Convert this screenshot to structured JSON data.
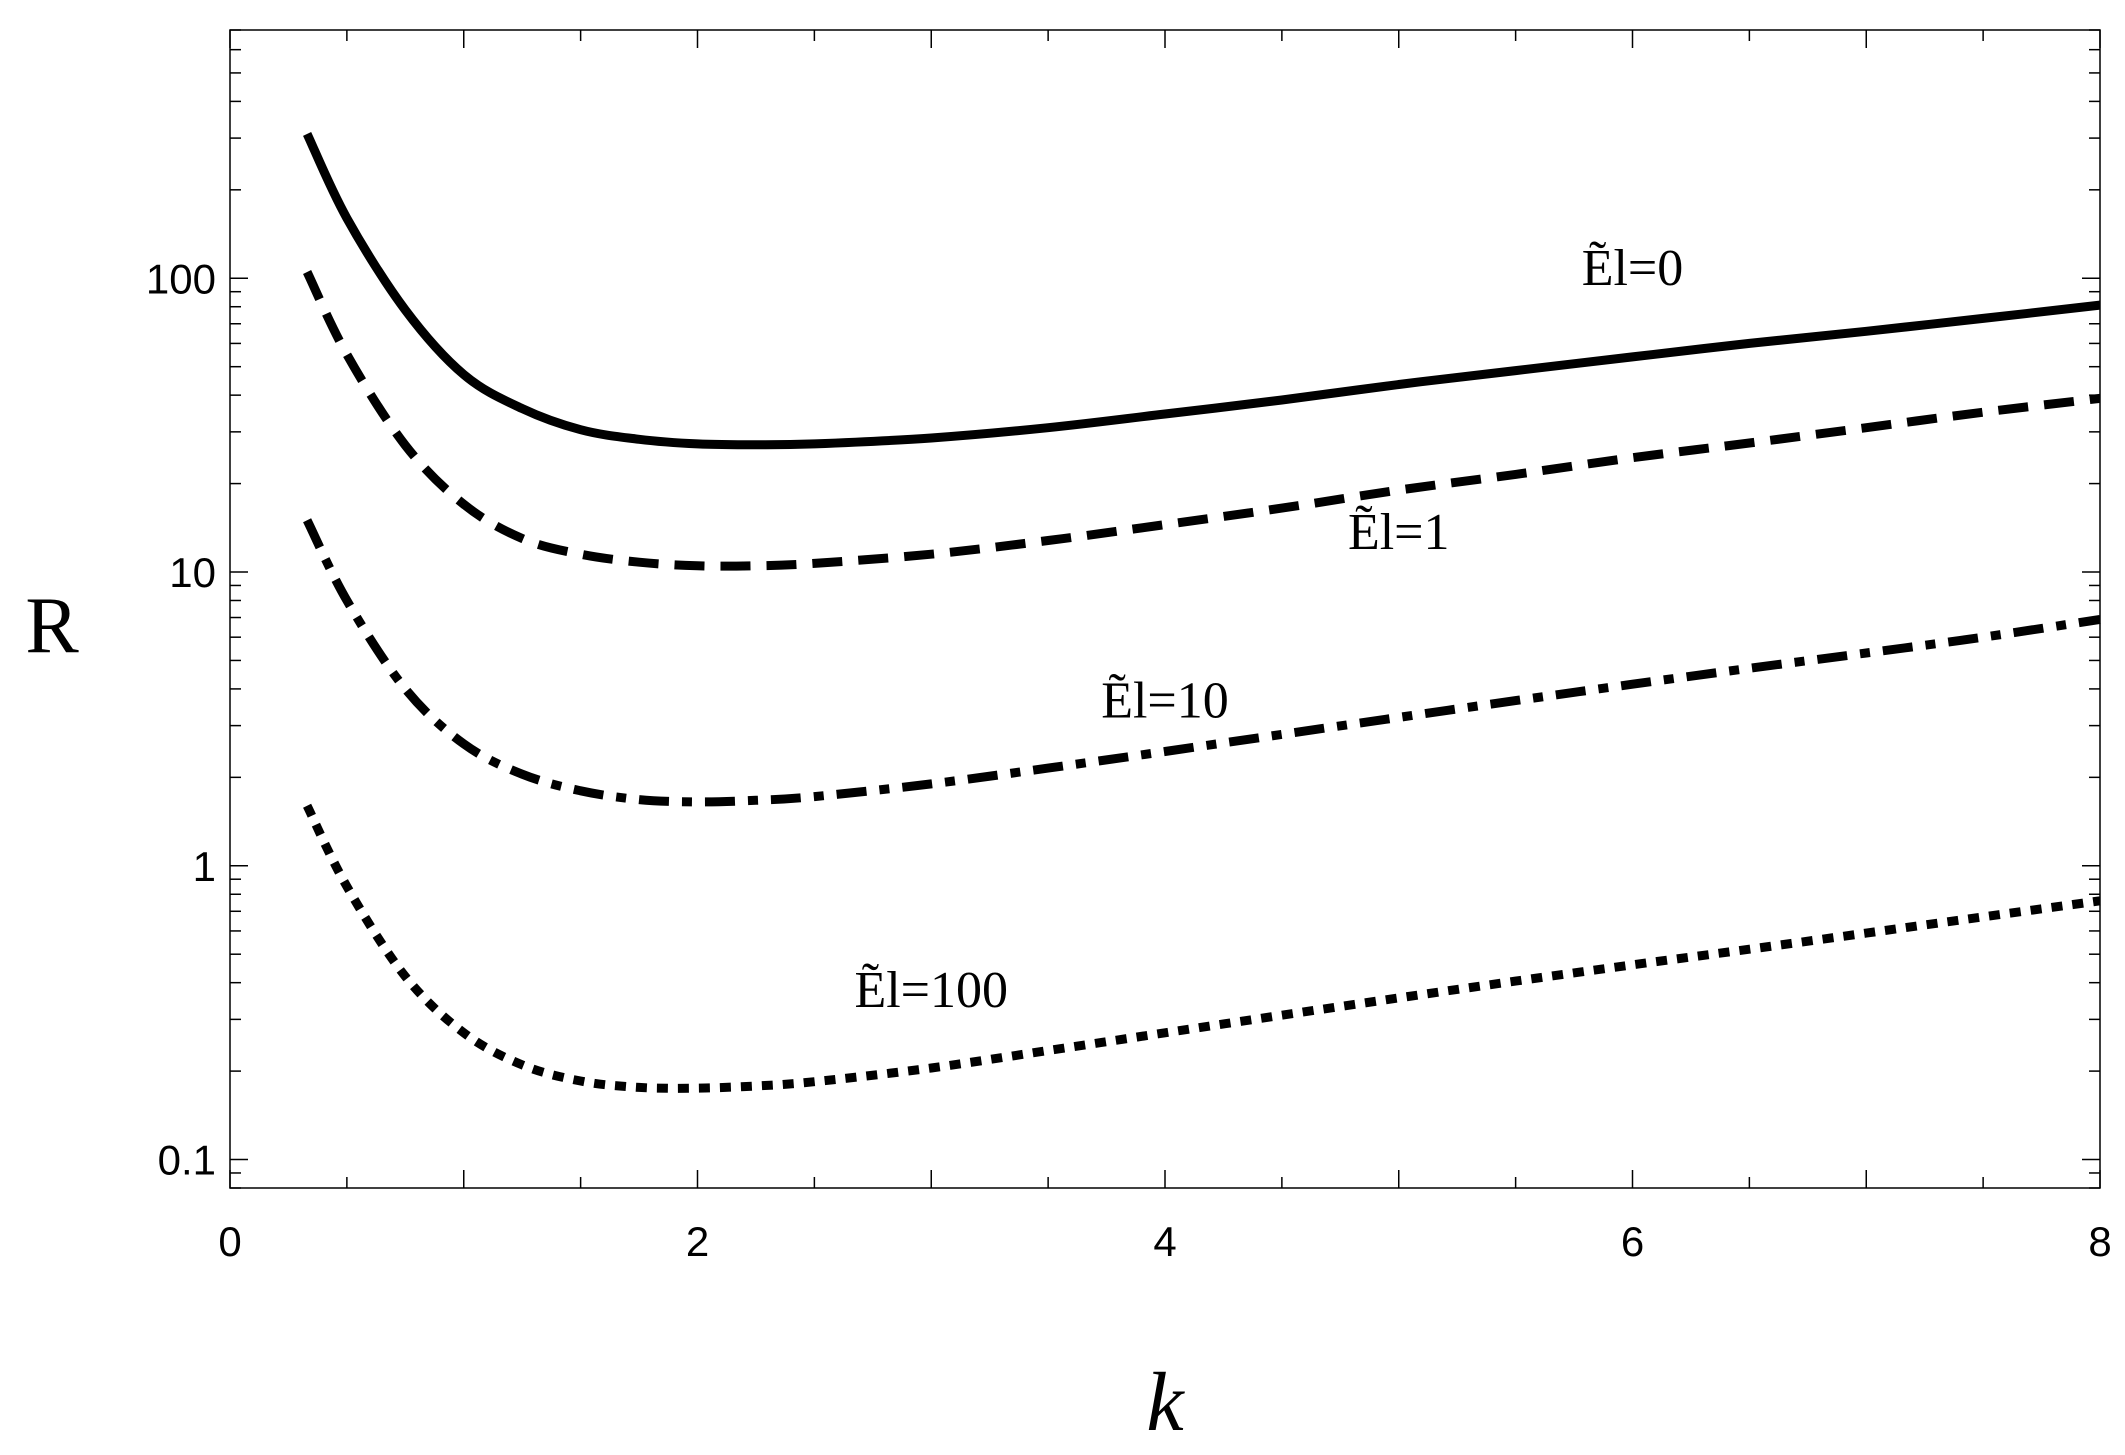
{
  "chart_data": {
    "type": "line",
    "xlabel": "k",
    "ylabel": "R",
    "xlim": [
      0,
      8
    ],
    "ylim": [
      0.08,
      700
    ],
    "y_scale": "log",
    "grid": false,
    "x_ticks": [
      0,
      2,
      4,
      6,
      8
    ],
    "x_tick_labels": [
      "0",
      "2",
      "4",
      "6",
      "8"
    ],
    "y_ticks": [
      0.1,
      1,
      10,
      100
    ],
    "y_tick_labels": [
      "0.1",
      "1",
      "10",
      "100"
    ],
    "series": [
      {
        "name": "Ẽl=0",
        "style": "solid",
        "x": [
          0.33,
          0.5,
          0.75,
          1,
          1.25,
          1.5,
          1.75,
          2,
          2.25,
          2.5,
          3,
          3.5,
          4,
          4.5,
          5,
          5.5,
          6,
          6.5,
          7,
          7.5,
          8
        ],
        "y": [
          310,
          160,
          78,
          47,
          36,
          30.5,
          28.3,
          27.3,
          27.1,
          27.3,
          28.6,
          31,
          34.5,
          38.5,
          43.5,
          48.5,
          54,
          60,
          66,
          73,
          81
        ]
      },
      {
        "name": "Ẽl=1",
        "style": "dashed",
        "x": [
          0.33,
          0.5,
          0.75,
          1,
          1.25,
          1.5,
          1.75,
          2,
          2.25,
          2.5,
          3,
          3.5,
          4,
          4.5,
          5,
          5.5,
          6,
          6.5,
          7,
          7.5,
          8
        ],
        "y": [
          105,
          55,
          27,
          17,
          13,
          11.5,
          10.8,
          10.5,
          10.5,
          10.7,
          11.5,
          12.8,
          14.5,
          16.5,
          19,
          21.5,
          24.5,
          27.5,
          31,
          35,
          39
        ]
      },
      {
        "name": "Ẽl=10",
        "style": "dash-dot",
        "x": [
          0.33,
          0.5,
          0.75,
          1,
          1.25,
          1.5,
          1.75,
          2,
          2.25,
          2.5,
          3,
          3.5,
          4,
          4.5,
          5,
          5.5,
          6,
          6.5,
          7,
          7.5,
          8
        ],
        "y": [
          15,
          8,
          4,
          2.6,
          2.05,
          1.8,
          1.68,
          1.65,
          1.67,
          1.72,
          1.9,
          2.15,
          2.45,
          2.8,
          3.2,
          3.65,
          4.15,
          4.7,
          5.3,
          6,
          6.9
        ]
      },
      {
        "name": "Ẽl=100",
        "style": "dotted",
        "x": [
          0.33,
          0.5,
          0.75,
          1,
          1.25,
          1.5,
          1.75,
          2,
          2.25,
          2.5,
          3,
          3.5,
          4,
          4.5,
          5,
          5.5,
          6,
          6.5,
          7,
          7.5,
          8
        ],
        "y": [
          1.6,
          0.85,
          0.42,
          0.27,
          0.21,
          0.185,
          0.176,
          0.175,
          0.178,
          0.184,
          0.205,
          0.235,
          0.27,
          0.31,
          0.355,
          0.405,
          0.46,
          0.52,
          0.59,
          0.67,
          0.76
        ]
      }
    ],
    "annotations": [
      {
        "text": "Ẽl=0",
        "x": 6.0,
        "y": 95
      },
      {
        "text": "Ẽl=1",
        "x": 5.0,
        "y": 12
      },
      {
        "text": "Ẽl=10",
        "x": 4.0,
        "y": 3.2
      },
      {
        "text": "Ẽl=100",
        "x": 3.0,
        "y": 0.33
      }
    ]
  }
}
